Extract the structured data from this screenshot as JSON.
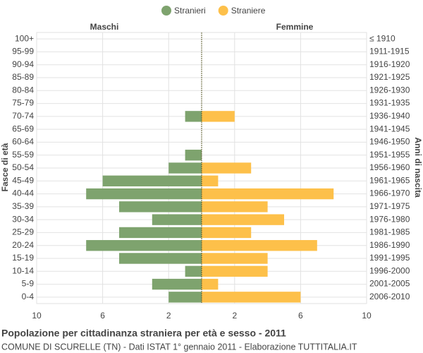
{
  "chart_data": {
    "type": "pyramid",
    "title": "Popolazione per cittadinanza straniera per età e sesso - 2011",
    "subtitle": "COMUNE DI SCURELLE (TN) - Dati ISTAT 1° gennaio 2011 - Elaborazione TUTTITALIA.IT",
    "left_label": "Maschi",
    "right_label": "Femmine",
    "y_axis_label": "Fasce di età",
    "y2_axis_label": "Anni di nascita",
    "categories": [
      "100+",
      "95-99",
      "90-94",
      "85-89",
      "80-84",
      "75-79",
      "70-74",
      "65-69",
      "60-64",
      "55-59",
      "50-54",
      "45-49",
      "40-44",
      "35-39",
      "30-34",
      "25-29",
      "20-24",
      "15-19",
      "10-14",
      "5-9",
      "0-4"
    ],
    "birth_years": [
      "≤ 1910",
      "1911-1915",
      "1916-1920",
      "1921-1925",
      "1926-1930",
      "1931-1935",
      "1936-1940",
      "1941-1945",
      "1946-1950",
      "1951-1955",
      "1956-1960",
      "1961-1965",
      "1966-1970",
      "1971-1975",
      "1976-1980",
      "1981-1985",
      "1986-1990",
      "1991-1995",
      "1996-2000",
      "2001-2005",
      "2006-2010"
    ],
    "series": [
      {
        "name": "Stranieri",
        "color": "#7ea36e",
        "side": "left",
        "values": [
          0,
          0,
          0,
          0,
          0,
          0,
          1,
          0,
          0,
          1,
          2,
          6,
          7,
          5,
          3,
          5,
          7,
          5,
          1,
          3,
          2
        ]
      },
      {
        "name": "Straniere",
        "color": "#fdc04a",
        "side": "right",
        "values": [
          0,
          0,
          0,
          0,
          0,
          0,
          2,
          0,
          0,
          0,
          3,
          1,
          8,
          4,
          5,
          3,
          7,
          4,
          4,
          1,
          6
        ]
      }
    ],
    "xlim": [
      -10,
      10
    ],
    "xticks": [
      {
        "value": -10,
        "label": "10"
      },
      {
        "value": -6,
        "label": "6"
      },
      {
        "value": -2,
        "label": "2"
      },
      2,
      6,
      10
    ],
    "grid": true
  }
}
